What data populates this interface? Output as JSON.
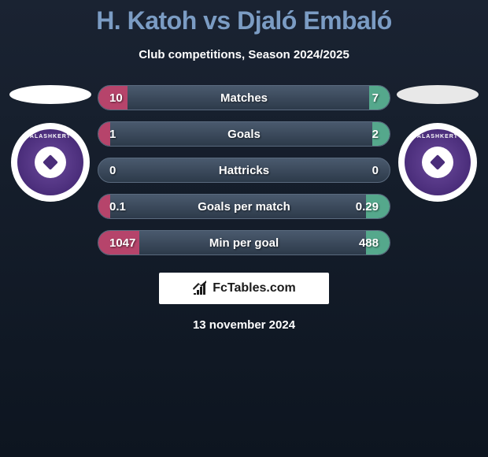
{
  "title": "H. Katoh vs Djaló Embaló",
  "subtitle": "Club competitions, Season 2024/2025",
  "date": "13 november 2024",
  "brand": "FcTables.com",
  "player_left": {
    "ellipse_color": "#ffffff",
    "badge_text": "ALASHKERT"
  },
  "player_right": {
    "ellipse_color": "#e8e8e8",
    "badge_text": "ALASHKERT"
  },
  "stats": [
    {
      "label": "Matches",
      "left_val": "10",
      "right_val": "7",
      "left_fill_pct": 10,
      "right_fill_pct": 7,
      "left_color": "#b6446b",
      "right_color": "#55a88c"
    },
    {
      "label": "Goals",
      "left_val": "1",
      "right_val": "2",
      "left_fill_pct": 4,
      "right_fill_pct": 6,
      "left_color": "#b6446b",
      "right_color": "#55a88c"
    },
    {
      "label": "Hattricks",
      "left_val": "0",
      "right_val": "0",
      "left_fill_pct": 0,
      "right_fill_pct": 0,
      "left_color": "#b6446b",
      "right_color": "#55a88c"
    },
    {
      "label": "Goals per match",
      "left_val": "0.1",
      "right_val": "0.29",
      "left_fill_pct": 4,
      "right_fill_pct": 8,
      "left_color": "#b6446b",
      "right_color": "#55a88c"
    },
    {
      "label": "Min per goal",
      "left_val": "1047",
      "right_val": "488",
      "left_fill_pct": 14,
      "right_fill_pct": 8,
      "left_color": "#b6446b",
      "right_color": "#55a88c"
    }
  ],
  "colors": {
    "bg_top": "#1a2332",
    "bg_bottom": "#0d1520",
    "title_color": "#7b9cc4",
    "bar_bg": "#4a5a6e",
    "left_fill": "#b6446b",
    "right_fill": "#55a88c"
  }
}
